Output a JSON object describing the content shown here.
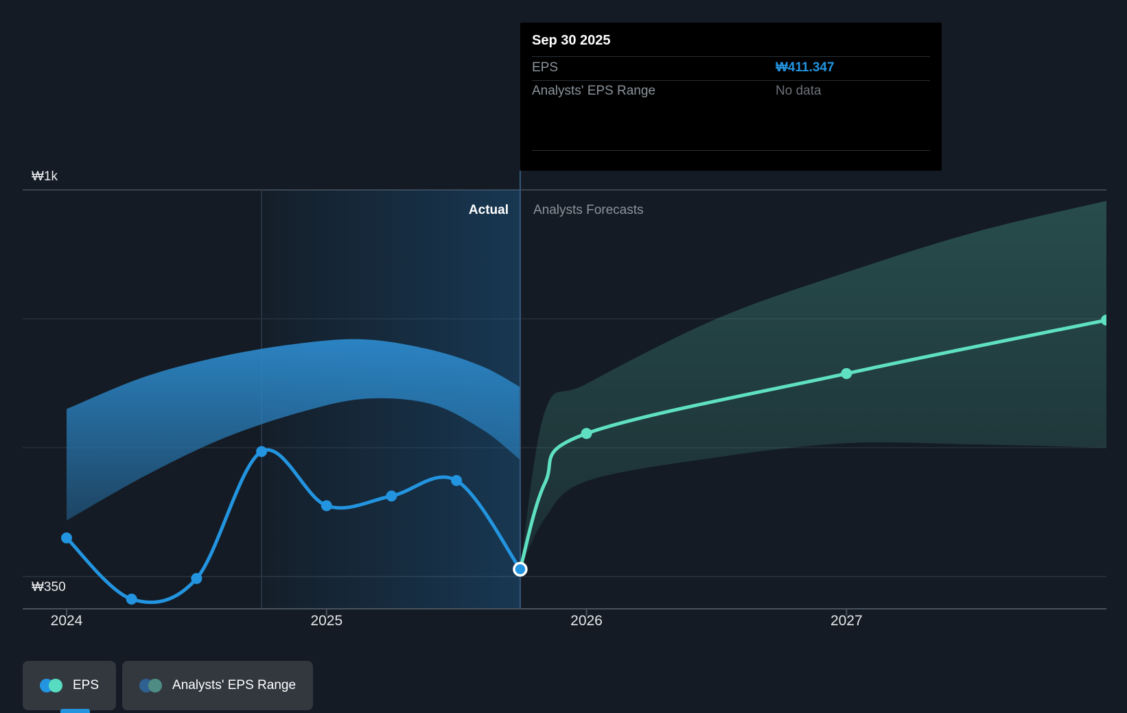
{
  "colors": {
    "background": "#141B24",
    "accent_blue": "#2394DF",
    "accent_teal": "#5FE0C2",
    "blue_band": "#2583C6",
    "teal_band": "#5FD8BC",
    "gridline_major": "#49525D",
    "gridline_minor": "#2E3741",
    "divider": "#35597B",
    "text_primary": "#FFFFFF",
    "text_secondary": "#8B939B",
    "tooltip_bg": "#000000",
    "legend_bg": "#33383F"
  },
  "tooltip": {
    "date": "Sep 30 2025",
    "rows": [
      {
        "label": "EPS",
        "value": "₩411.347",
        "style": "accent"
      },
      {
        "label": "Analysts' EPS Range",
        "value": "No data",
        "style": "muted"
      }
    ]
  },
  "phase_labels": {
    "actual": "Actual",
    "forecast": "Analysts Forecasts"
  },
  "y_axis": {
    "top_label": "₩1k",
    "bottom_label": "₩350"
  },
  "legend": [
    {
      "label": "EPS",
      "dot_colors": [
        "#2394DF",
        "#57DCC1"
      ]
    },
    {
      "label": "Analysts' EPS Range",
      "dot_colors": [
        "#2E6090",
        "#4F8D84"
      ]
    }
  ],
  "chart_data": {
    "type": "line",
    "title": "EPS: actual history vs analysts forecasts (KRW)",
    "xlim": [
      2023.831,
      2028.0
    ],
    "ylim": [
      350,
      1000
    ],
    "y_gridline_values": [
      1000,
      800,
      600,
      400
    ],
    "y_axis_value": 350,
    "y_tick_labels": {
      "1000": "₩1k",
      "350": "₩350"
    },
    "x_ticks": [
      {
        "year": 2024,
        "label": "2024"
      },
      {
        "year": 2025,
        "label": "2025"
      },
      {
        "year": 2026,
        "label": "2026"
      },
      {
        "year": 2027,
        "label": "2027"
      }
    ],
    "divider_x": 2025.745,
    "highlight_range": [
      2024.75,
      2025.745
    ],
    "legend_position": "bottom-left",
    "grid": true,
    "series": [
      {
        "name": "EPS (actual, quarterly)",
        "type": "line",
        "color": "#2394DF",
        "x": [
          2024.0,
          2024.25,
          2024.5,
          2024.75,
          2025.0,
          2025.25,
          2025.5,
          2025.745
        ],
        "values": [
          460,
          365,
          397,
          594,
          510,
          525,
          549,
          411.347
        ],
        "dot_indices": [
          0,
          1,
          2,
          3,
          4,
          5,
          6
        ]
      },
      {
        "name": "EPS (analysts forecast)",
        "type": "line",
        "color": "#5FE0C2",
        "x": [
          2025.745,
          2025.84,
          2026.0,
          2027.0,
          2028.0
        ],
        "values": [
          411.347,
          545,
          622,
          715,
          798
        ],
        "dot_indices": [
          2,
          3,
          4
        ]
      },
      {
        "name": "EPS range band (actual period)",
        "type": "band",
        "color": "#2583C6",
        "x": [
          2024.0,
          2024.3,
          2024.6,
          2024.9,
          2025.15,
          2025.4,
          2025.6,
          2025.745
        ],
        "high": [
          660,
          710,
          742,
          762,
          768,
          752,
          726,
          694
        ],
        "low": [
          487,
          556,
          614,
          655,
          676,
          668,
          628,
          581
        ]
      },
      {
        "name": "Analysts' EPS range band (forecast)",
        "type": "band",
        "color": "#5FD8BC",
        "x": [
          2025.745,
          2025.84,
          2026.0,
          2026.5,
          2027.0,
          2027.5,
          2028.0
        ],
        "high": [
          411.347,
          656,
          699,
          800,
          872,
          935,
          983
        ],
        "low": [
          411.347,
          490,
          548,
          585,
          607,
          605,
          600
        ]
      }
    ],
    "selected_point": {
      "x": 2025.745,
      "value": 411.347,
      "date": "Sep 30 2025"
    }
  }
}
